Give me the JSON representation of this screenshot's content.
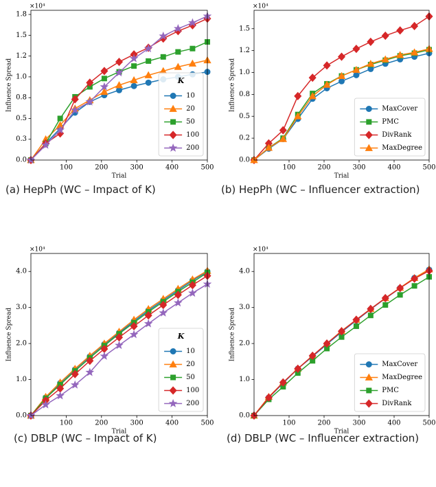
{
  "chart_data": [
    {
      "type": "line",
      "caption": "(a) HepPh (WC – Impact of K)",
      "xlabel": "Trial",
      "ylabel": "Influence Spread",
      "multiplier": "×10⁴",
      "legend": "lower right",
      "legend_title": "K",
      "x": [
        0,
        42,
        83,
        125,
        167,
        208,
        250,
        292,
        333,
        375,
        417,
        458,
        500
      ],
      "xlim": [
        0,
        500
      ],
      "xticks": [
        100,
        200,
        300,
        400,
        500
      ],
      "ylim": [
        0,
        1.8
      ],
      "yticks": [
        {
          "value": 0,
          "label": "0.0"
        },
        {
          "value": 0.25,
          "label": "0.3"
        },
        0.5,
        {
          "value": 0.75,
          "label": "0.8"
        },
        {
          "value": 1,
          "label": "1.0"
        },
        {
          "value": 1.25,
          "label": "1.2"
        },
        1.5,
        {
          "value": 1.75,
          "label": "1.8"
        }
      ],
      "series": [
        {
          "name": "10",
          "color": "#1f77b4",
          "marker": "circle",
          "values": [
            0,
            0.2,
            0.38,
            0.57,
            0.7,
            0.78,
            0.84,
            0.89,
            0.93,
            0.97,
            1.0,
            1.03,
            1.06
          ]
        },
        {
          "name": "20",
          "color": "#ff7f0e",
          "marker": "triangle",
          "values": [
            0,
            0.25,
            0.42,
            0.62,
            0.72,
            0.82,
            0.9,
            0.96,
            1.02,
            1.07,
            1.12,
            1.16,
            1.2
          ]
        },
        {
          "name": "50",
          "color": "#2ca02c",
          "marker": "square",
          "values": [
            0,
            0.2,
            0.5,
            0.76,
            0.88,
            0.98,
            1.06,
            1.13,
            1.19,
            1.24,
            1.3,
            1.34,
            1.42
          ]
        },
        {
          "name": "100",
          "color": "#d62728",
          "marker": "diamond",
          "values": [
            0,
            0.2,
            0.32,
            0.73,
            0.93,
            1.07,
            1.18,
            1.27,
            1.35,
            1.46,
            1.55,
            1.62,
            1.7
          ]
        },
        {
          "name": "200",
          "color": "#9467bd",
          "marker": "star",
          "values": [
            0,
            0.18,
            0.36,
            0.6,
            0.7,
            0.88,
            1.05,
            1.22,
            1.34,
            1.49,
            1.58,
            1.65,
            1.73
          ]
        }
      ]
    },
    {
      "type": "line",
      "caption": "(b) HepPh (WC – Influencer extraction)",
      "xlabel": "Trial",
      "ylabel": "Influence Spread",
      "multiplier": "×10⁴",
      "legend": "lower right",
      "x": [
        0,
        42,
        83,
        125,
        167,
        208,
        250,
        292,
        333,
        375,
        417,
        458,
        500
      ],
      "xlim": [
        0,
        500
      ],
      "xticks": [
        100,
        200,
        300,
        400,
        500
      ],
      "ylim": [
        0,
        1.71
      ],
      "yticks": [
        {
          "value": 0,
          "label": "0.0"
        },
        {
          "value": 0.25,
          "label": "0.2"
        },
        0.5,
        {
          "value": 0.75,
          "label": "0.8"
        },
        {
          "value": 1,
          "label": "1.0"
        },
        {
          "value": 1.25,
          "label": "1.2"
        },
        1.5
      ],
      "series": [
        {
          "name": "MaxCover",
          "color": "#1f77b4",
          "marker": "circle",
          "values": [
            0,
            0.13,
            0.24,
            0.47,
            0.7,
            0.82,
            0.9,
            0.97,
            1.04,
            1.1,
            1.15,
            1.18,
            1.22
          ]
        },
        {
          "name": "PMC",
          "color": "#2ca02c",
          "marker": "square",
          "values": [
            0,
            0.14,
            0.25,
            0.52,
            0.76,
            0.87,
            0.96,
            1.03,
            1.09,
            1.14,
            1.19,
            1.22,
            1.26
          ]
        },
        {
          "name": "DivRank",
          "color": "#d62728",
          "marker": "diamond",
          "values": [
            0,
            0.19,
            0.34,
            0.73,
            0.94,
            1.08,
            1.18,
            1.27,
            1.35,
            1.42,
            1.48,
            1.53,
            1.64
          ]
        },
        {
          "name": "MaxDegree",
          "color": "#ff7f0e",
          "marker": "triangle",
          "values": [
            0,
            0.14,
            0.24,
            0.5,
            0.73,
            0.86,
            0.96,
            1.03,
            1.1,
            1.15,
            1.2,
            1.23,
            1.27
          ]
        }
      ]
    },
    {
      "type": "line",
      "caption": "(c) DBLP (WC – Impact of K)",
      "xlabel": "Trial",
      "ylabel": "Influence Spread",
      "multiplier": "×10⁴",
      "legend": "lower right",
      "legend_title": "K",
      "x": [
        0,
        42,
        83,
        125,
        167,
        208,
        250,
        292,
        333,
        375,
        417,
        458,
        500
      ],
      "xlim": [
        0,
        500
      ],
      "xticks": [
        100,
        200,
        300,
        400,
        500
      ],
      "ylim": [
        0,
        4.5
      ],
      "yticks": [
        {
          "value": 0,
          "label": "0.0"
        },
        {
          "value": 1,
          "label": "1.0"
        },
        {
          "value": 2,
          "label": "2.0"
        },
        {
          "value": 3,
          "label": "3.0"
        },
        {
          "value": 4,
          "label": "4.0"
        }
      ],
      "series": [
        {
          "name": "10",
          "color": "#1f77b4",
          "marker": "circle",
          "values": [
            0,
            0.5,
            0.9,
            1.28,
            1.64,
            1.98,
            2.3,
            2.62,
            2.92,
            3.2,
            3.48,
            3.75,
            4.0
          ]
        },
        {
          "name": "20",
          "color": "#ff7f0e",
          "marker": "triangle",
          "values": [
            0,
            0.52,
            0.92,
            1.3,
            1.66,
            2.0,
            2.33,
            2.66,
            2.96,
            3.24,
            3.52,
            3.78,
            4.02
          ]
        },
        {
          "name": "50",
          "color": "#2ca02c",
          "marker": "square",
          "values": [
            0,
            0.48,
            0.86,
            1.24,
            1.6,
            1.94,
            2.27,
            2.58,
            2.88,
            3.16,
            3.44,
            3.7,
            3.97
          ]
        },
        {
          "name": "100",
          "color": "#d62728",
          "marker": "diamond",
          "values": [
            0,
            0.42,
            0.75,
            1.15,
            1.52,
            1.85,
            2.17,
            2.48,
            2.78,
            3.07,
            3.35,
            3.62,
            3.88
          ]
        },
        {
          "name": "200",
          "color": "#9467bd",
          "marker": "star",
          "values": [
            0,
            0.3,
            0.55,
            0.85,
            1.2,
            1.65,
            1.95,
            2.25,
            2.55,
            2.85,
            3.13,
            3.4,
            3.65
          ]
        }
      ]
    },
    {
      "type": "line",
      "caption": "(d) DBLP (WC – Influencer extraction)",
      "xlabel": "Trial",
      "ylabel": "Influence Spread",
      "multiplier": "×10⁴",
      "legend": "lower right",
      "x": [
        0,
        42,
        83,
        125,
        167,
        208,
        250,
        292,
        333,
        375,
        417,
        458,
        500
      ],
      "xlim": [
        0,
        500
      ],
      "xticks": [
        100,
        200,
        300,
        400,
        500
      ],
      "ylim": [
        0,
        4.5
      ],
      "yticks": [
        {
          "value": 0,
          "label": "0.0"
        },
        {
          "value": 1,
          "label": "1.0"
        },
        {
          "value": 2,
          "label": "2.0"
        },
        {
          "value": 3,
          "label": "3.0"
        },
        {
          "value": 4,
          "label": "4.0"
        }
      ],
      "series": [
        {
          "name": "MaxCover",
          "color": "#1f77b4",
          "marker": "circle",
          "values": [
            0,
            0.5,
            0.9,
            1.3,
            1.64,
            1.98,
            2.32,
            2.64,
            2.95,
            3.25,
            3.54,
            3.82,
            4.05
          ]
        },
        {
          "name": "MaxDegree",
          "color": "#ff7f0e",
          "marker": "triangle",
          "values": [
            0,
            0.52,
            0.92,
            1.3,
            1.66,
            2.0,
            2.35,
            2.66,
            2.96,
            3.26,
            3.55,
            3.82,
            4.06
          ]
        },
        {
          "name": "PMC",
          "color": "#2ca02c",
          "marker": "square",
          "values": [
            0,
            0.45,
            0.8,
            1.18,
            1.52,
            1.86,
            2.18,
            2.48,
            2.78,
            3.07,
            3.35,
            3.6,
            3.85
          ]
        },
        {
          "name": "DivRank",
          "color": "#d62728",
          "marker": "diamond",
          "values": [
            0,
            0.5,
            0.92,
            1.3,
            1.66,
            2.0,
            2.34,
            2.66,
            2.96,
            3.26,
            3.54,
            3.8,
            4.02
          ]
        }
      ]
    }
  ]
}
